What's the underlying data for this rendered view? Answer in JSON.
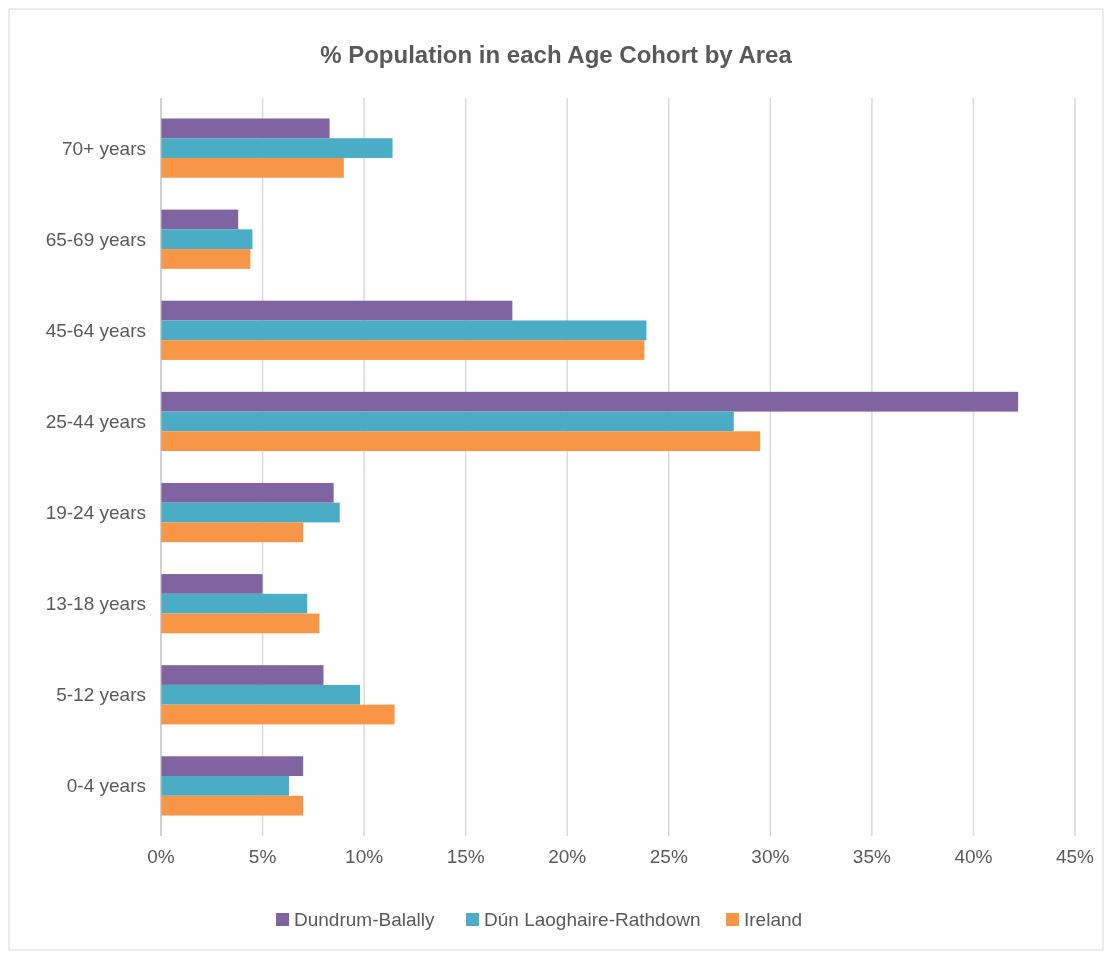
{
  "chart_data": {
    "type": "bar",
    "orientation": "horizontal",
    "title": "% Population in each Age Cohort by Area",
    "categories": [
      "70+ years",
      "65-69 years",
      "45-64 years",
      "25-44 years",
      "19-24 years",
      "13-18 years",
      "5-12 years",
      "0-4 years"
    ],
    "series": [
      {
        "name": "Dundrum-Balally",
        "color": "#8064a2",
        "values": [
          8.3,
          3.8,
          17.3,
          42.2,
          8.5,
          5.0,
          8.0,
          7.0
        ]
      },
      {
        "name": "Dún Laoghaire-Rathdown",
        "color": "#4bacc6",
        "values": [
          11.4,
          4.5,
          23.9,
          28.2,
          8.8,
          7.2,
          9.8,
          6.3
        ]
      },
      {
        "name": "Ireland",
        "color": "#f79646",
        "values": [
          9.0,
          4.4,
          23.8,
          29.5,
          7.0,
          7.8,
          11.5,
          7.0
        ]
      }
    ],
    "xlim": [
      0,
      45
    ],
    "xticks": [
      {
        "value": 0,
        "label": "0%"
      },
      {
        "value": 5,
        "label": "5%"
      },
      {
        "value": 10,
        "label": "10%"
      },
      {
        "value": 15,
        "label": "15%"
      },
      {
        "value": 20,
        "label": "20%"
      },
      {
        "value": 25,
        "label": "25%"
      },
      {
        "value": 30,
        "label": "30%"
      },
      {
        "value": 35,
        "label": "35%"
      },
      {
        "value": 40,
        "label": "40%"
      },
      {
        "value": 45,
        "label": "45%"
      }
    ],
    "grid": "x",
    "legend": "bottom"
  }
}
